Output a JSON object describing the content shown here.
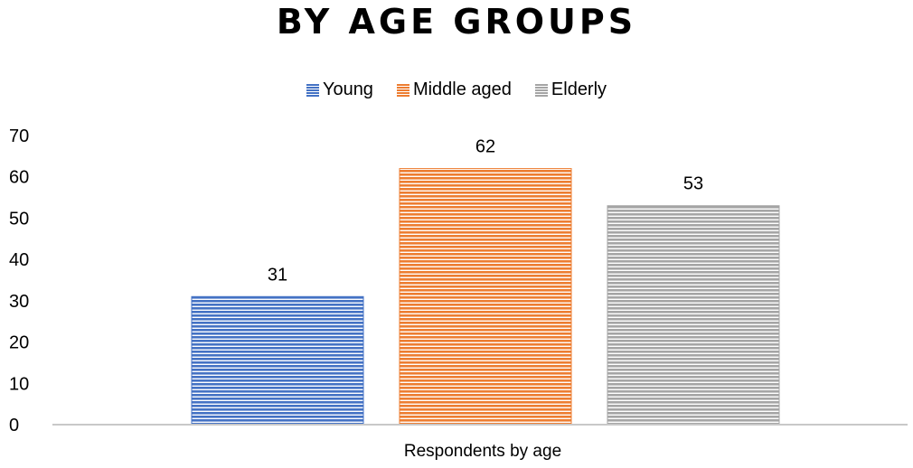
{
  "chart_data": {
    "type": "bar",
    "title": "BY AGE GROUPS",
    "categories": [
      "Respondents by age"
    ],
    "series": [
      {
        "name": "Young",
        "values": [
          31
        ],
        "color": "#4472C4"
      },
      {
        "name": "Middle aged",
        "values": [
          62
        ],
        "color": "#ED7D31"
      },
      {
        "name": "Elderly",
        "values": [
          53
        ],
        "color": "#A5A5A5"
      }
    ],
    "ylim": [
      0,
      70
    ],
    "yticks": [
      0,
      10,
      20,
      30,
      40,
      50,
      60,
      70
    ],
    "grid": false,
    "legend_position": "top",
    "data_labels": true,
    "fill_pattern": "horizontal-stripes"
  }
}
